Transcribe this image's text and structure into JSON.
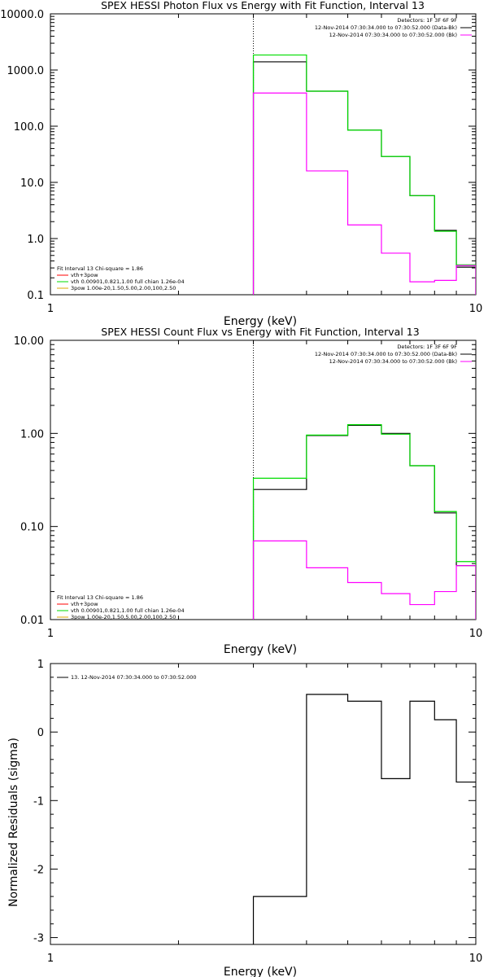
{
  "chart_data": [
    {
      "type": "line",
      "title": "SPEX HESSI Photon Flux vs Energy with Fit Function, Interval 13",
      "xlabel": "Energy (keV)",
      "ylabel": "",
      "xscale": "log",
      "yscale": "log",
      "xlim": [
        1,
        10
      ],
      "ylim": [
        0.1,
        10000
      ],
      "x_ticks": [
        "1",
        "10"
      ],
      "y_ticks": [
        {
          "value": 0.1,
          "label": "0.1"
        },
        {
          "value": 1,
          "label": "1.0"
        },
        {
          "value": 10,
          "label": "10.0"
        },
        {
          "value": 100,
          "label": "100.0"
        },
        {
          "value": 1000,
          "label": "1000.0"
        },
        {
          "value": 10000,
          "label": "10000.0"
        }
      ],
      "vline": 3,
      "info": [
        "Detectors: 1F 3F 6F 9F",
        "12-Nov-2014 07:30:34.000 to 07:30:52.000 (Data-Bk)",
        "12-Nov-2014 07:30:34.000 to 07:30:52.000 (Bk)"
      ],
      "info_colors": [
        "#000000",
        "#000000",
        "#ff00ff"
      ],
      "legend": [
        {
          "text": "Fit Interval 13   Chi-square = 1.86",
          "color": null
        },
        {
          "text": "vth+3pow",
          "color": "#ff0000"
        },
        {
          "text": "vth 0.00901,0.821,1.00  full chian 1.26e-04",
          "color": "#00dd00"
        },
        {
          "text": "3pow 1.00e-20,1.50,5.00,2.00,100,2.50",
          "color": "#ddaa00"
        }
      ],
      "edges": [
        3,
        4,
        5,
        6,
        7,
        8,
        9,
        10
      ],
      "series": [
        {
          "name": "Data-Bk",
          "color": "#000000",
          "values": [
            1400,
            420,
            85,
            29,
            5.8,
            1.4,
            0.31
          ]
        },
        {
          "name": "vth 0.00901,0.821,1.00  full chian 1.26e-04",
          "color": "#00dd00",
          "values": [
            1850,
            420,
            85,
            29,
            5.8,
            1.35,
            0.34
          ]
        },
        {
          "name": "Bk",
          "color": "#ff00ff",
          "values": [
            390,
            16,
            1.75,
            0.55,
            0.17,
            0.18,
            0.33
          ]
        }
      ]
    },
    {
      "type": "line",
      "title": "SPEX HESSI Count Flux vs Energy with Fit Function, Interval 13",
      "xlabel": "Energy (keV)",
      "ylabel": "",
      "xscale": "log",
      "yscale": "log",
      "xlim": [
        1,
        10
      ],
      "ylim": [
        0.01,
        10
      ],
      "x_ticks": [
        "1",
        "10"
      ],
      "y_ticks": [
        {
          "value": 0.01,
          "label": "0.01"
        },
        {
          "value": 0.1,
          "label": "0.10"
        },
        {
          "value": 1,
          "label": "1.00"
        },
        {
          "value": 10,
          "label": "10.00"
        }
      ],
      "vline": 3,
      "info": [
        "Detectors: 1F 3F 6F 9F",
        "12-Nov-2014 07:30:34.000 to 07:30:52.000 (Data-Bk)",
        "12-Nov-2014 07:30:34.000 to 07:30:52.000 (Bk)"
      ],
      "info_colors": [
        "#000000",
        "#000000",
        "#ff00ff"
      ],
      "legend": [
        {
          "text": "Fit Interval 13   Chi-square = 1.86",
          "color": null
        },
        {
          "text": "vth+3pow",
          "color": "#ff0000"
        },
        {
          "text": "vth 0.00901,0.821,1.00  full chian 1.26e-04",
          "color": "#00dd00"
        },
        {
          "text": "3pow 1.00e-20,1.50,5.00,2.00,100,2.50",
          "color": "#ddaa00"
        }
      ],
      "edges": [
        3,
        4,
        5,
        6,
        7,
        8,
        9,
        10
      ],
      "series": [
        {
          "name": "Data-Bk",
          "color": "#000000",
          "values": [
            0.25,
            0.95,
            1.22,
            1.0,
            0.45,
            0.14,
            0.038
          ]
        },
        {
          "name": "vth 0.00901,0.821,1.00  full chian 1.26e-04",
          "color": "#00dd00",
          "values": [
            0.33,
            0.96,
            1.24,
            0.98,
            0.45,
            0.145,
            0.042
          ]
        },
        {
          "name": "Bk",
          "color": "#ff00ff",
          "values": [
            0.07,
            0.036,
            0.025,
            0.019,
            0.0145,
            0.02,
            0.038
          ]
        }
      ]
    },
    {
      "type": "line",
      "title": "",
      "xlabel": "Energy (keV)",
      "ylabel": "Normalized Residuals (sigma)",
      "xscale": "log",
      "yscale": "linear",
      "xlim": [
        1,
        10
      ],
      "ylim": [
        -3.1,
        1
      ],
      "x_ticks": [
        "1",
        "10"
      ],
      "y_ticks": [
        {
          "value": -3,
          "label": "-3"
        },
        {
          "value": -2,
          "label": "-2"
        },
        {
          "value": -1,
          "label": "-1"
        },
        {
          "value": 0,
          "label": "0"
        },
        {
          "value": 1,
          "label": "1"
        }
      ],
      "legend": [
        {
          "text": "13. 12-Nov-2014 07:30:34.000 to 07:30:52.000",
          "color": "#000000"
        }
      ],
      "edges": [
        3,
        4,
        5,
        6,
        7,
        8,
        9,
        10
      ],
      "series": [
        {
          "name": "13. 12-Nov-2014 07:30:34.000 to 07:30:52.000",
          "color": "#000000",
          "values": [
            -2.4,
            0.55,
            0.45,
            -0.68,
            0.45,
            0.18,
            -0.73
          ]
        }
      ]
    }
  ]
}
